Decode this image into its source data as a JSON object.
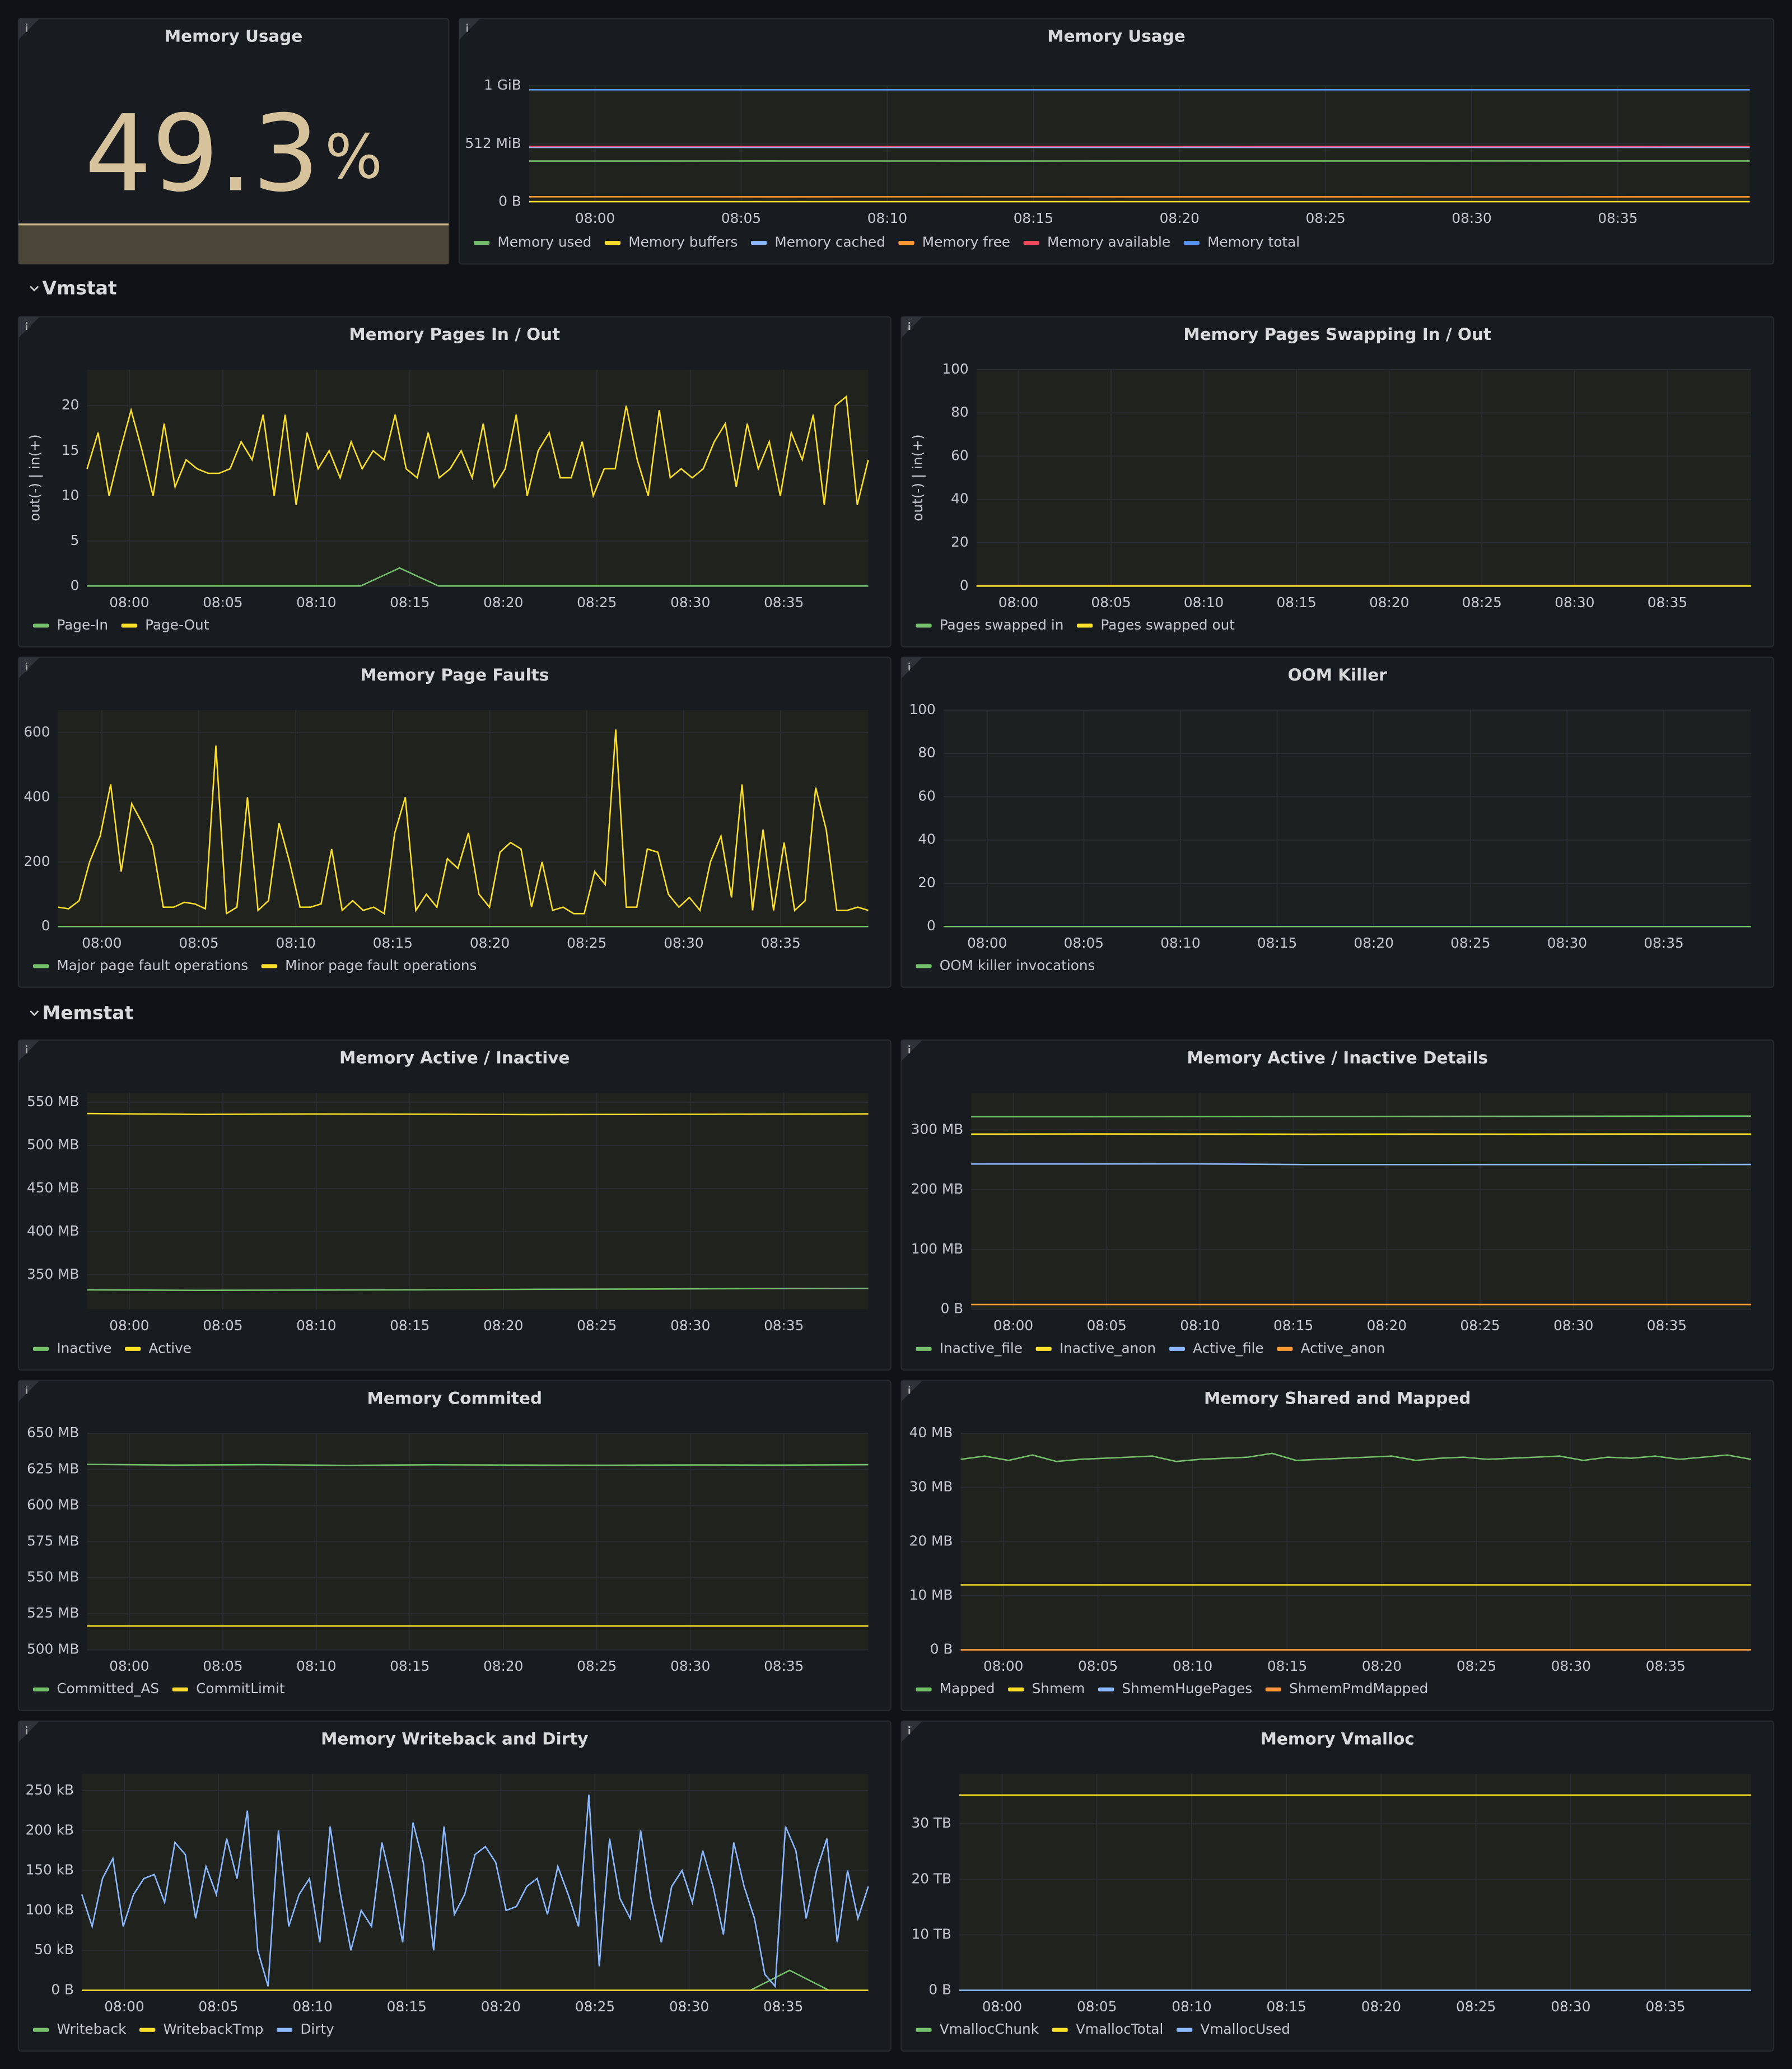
{
  "stat_panel": {
    "title": "Memory Usage",
    "value": 49.3,
    "unit": "%"
  },
  "sections": [
    "Vmstat",
    "Memstat"
  ],
  "panels": [
    {
      "type": "line",
      "title": "Memory Usage",
      "ylim": [
        0,
        1073741824
      ],
      "yticks": [
        {
          "value": 0,
          "label": "0 B"
        },
        {
          "value": 536870912,
          "label": "512 MiB"
        },
        {
          "value": 1073741824,
          "label": "1 GiB"
        }
      ],
      "xticks": [
        "08:00",
        "08:05",
        "08:10",
        "08:15",
        "08:20",
        "08:25",
        "08:30",
        "08:35"
      ],
      "series": [
        {
          "name": "Memory used",
          "color": "#73bf69",
          "values": [
            378000000,
            378500000,
            378200000,
            378800000,
            379000000,
            378600000
          ]
        },
        {
          "name": "Memory buffers",
          "color": "#fade2a",
          "values": [
            2500000,
            2500000,
            2500000,
            2500000,
            2500000,
            2500000
          ]
        },
        {
          "name": "Memory cached",
          "color": "#8ab8ff",
          "values": [
            505000000,
            505000000,
            505000000,
            505000000,
            505000000,
            505000000
          ]
        },
        {
          "name": "Memory free",
          "color": "#ff9830",
          "values": [
            48000000,
            47500000,
            47800000,
            47200000,
            47000000,
            47400000
          ]
        },
        {
          "name": "Memory available",
          "color": "#f2495c",
          "values": [
            512000000,
            511800000,
            512100000,
            511600000,
            511400000,
            511700000
          ]
        },
        {
          "name": "Memory total",
          "color": "#5794f2",
          "values": [
            1037000000,
            1037000000,
            1037000000,
            1037000000,
            1037000000,
            1037000000
          ]
        }
      ]
    },
    {
      "type": "line",
      "title": "Memory Pages In / Out",
      "ylabel": "out(-) | in(+)",
      "ylim": [
        0,
        24
      ],
      "yticks": [
        0,
        5,
        10,
        15,
        20
      ],
      "xticks": [
        "08:00",
        "08:05",
        "08:10",
        "08:15",
        "08:20",
        "08:25",
        "08:30",
        "08:35"
      ],
      "series": [
        {
          "name": "Page-In",
          "color": "#73bf69",
          "values": [
            0,
            0,
            0,
            0,
            0,
            0,
            0,
            0,
            2,
            0,
            0,
            0,
            0,
            0,
            0,
            0,
            0,
            0,
            0,
            0,
            0
          ]
        },
        {
          "name": "Page-Out",
          "color": "#fade2a",
          "values": [
            13,
            17,
            10,
            15,
            19.5,
            15,
            10,
            18,
            11,
            14,
            13,
            12.5,
            12.5,
            13,
            16,
            14,
            19,
            10,
            19,
            9,
            17,
            13,
            15,
            12,
            16,
            13,
            15,
            14,
            19,
            13,
            12,
            17,
            12,
            13,
            15,
            12,
            18,
            11,
            13,
            19,
            10,
            15,
            17,
            12,
            12,
            16,
            10,
            13,
            13,
            20,
            14,
            10,
            19.5,
            12,
            13,
            12,
            13,
            16,
            18,
            11,
            18,
            13,
            16,
            10,
            17,
            14,
            19,
            9,
            20,
            21,
            9,
            14
          ]
        }
      ]
    },
    {
      "type": "line",
      "title": "Memory Pages Swapping In / Out",
      "ylabel": "out(-) | in(+)",
      "ylim": [
        0,
        100
      ],
      "yticks": [
        0,
        20,
        40,
        60,
        80,
        100
      ],
      "xticks": [
        "08:00",
        "08:05",
        "08:10",
        "08:15",
        "08:20",
        "08:25",
        "08:30",
        "08:35"
      ],
      "series": [
        {
          "name": "Pages swapped in",
          "color": "#73bf69",
          "values": [
            0,
            0,
            0,
            0,
            0,
            0,
            0,
            0,
            0,
            0,
            0
          ]
        },
        {
          "name": "Pages swapped out",
          "color": "#fade2a",
          "values": [
            0,
            0,
            0,
            0,
            0,
            0,
            0,
            0,
            0,
            0,
            0
          ]
        }
      ]
    },
    {
      "type": "line",
      "title": "Memory Page Faults",
      "ylim": [
        0,
        670
      ],
      "yticks": [
        0,
        200,
        400,
        600
      ],
      "xticks": [
        "08:00",
        "08:05",
        "08:10",
        "08:15",
        "08:20",
        "08:25",
        "08:30",
        "08:35"
      ],
      "series": [
        {
          "name": "Major page fault operations",
          "color": "#73bf69",
          "values": [
            0,
            0,
            0,
            0,
            0,
            0,
            0,
            0,
            0,
            0,
            0
          ]
        },
        {
          "name": "Minor page fault operations",
          "color": "#fade2a",
          "values": [
            60,
            55,
            80,
            200,
            280,
            440,
            170,
            380,
            320,
            250,
            60,
            60,
            75,
            70,
            55,
            560,
            40,
            60,
            400,
            50,
            80,
            320,
            200,
            60,
            60,
            70,
            240,
            50,
            80,
            50,
            60,
            40,
            290,
            400,
            50,
            100,
            60,
            210,
            180,
            290,
            100,
            60,
            230,
            260,
            240,
            60,
            200,
            50,
            60,
            40,
            40,
            170,
            130,
            610,
            60,
            60,
            240,
            230,
            100,
            60,
            90,
            50,
            200,
            280,
            90,
            440,
            50,
            300,
            50,
            260,
            50,
            80,
            430,
            300,
            50,
            50,
            60,
            50
          ]
        }
      ]
    },
    {
      "type": "line",
      "title": "OOM Killer",
      "ylim": [
        0,
        100
      ],
      "yticks": [
        0,
        20,
        40,
        60,
        80,
        100
      ],
      "xticks": [
        "08:00",
        "08:05",
        "08:10",
        "08:15",
        "08:20",
        "08:25",
        "08:30",
        "08:35"
      ],
      "series": [
        {
          "name": "OOM killer invocations",
          "color": "#73bf69",
          "values": [
            0,
            0,
            0,
            0,
            0,
            0,
            0,
            0,
            0,
            0,
            0
          ]
        }
      ]
    },
    {
      "type": "line",
      "title": "Memory Active / Inactive",
      "ylim": [
        310000000,
        561000000
      ],
      "yticks": [
        {
          "value": 350000000,
          "label": "350 MB"
        },
        {
          "value": 400000000,
          "label": "400 MB"
        },
        {
          "value": 450000000,
          "label": "450 MB"
        },
        {
          "value": 500000000,
          "label": "500 MB"
        },
        {
          "value": 550000000,
          "label": "550 MB"
        }
      ],
      "xticks": [
        "08:00",
        "08:05",
        "08:10",
        "08:15",
        "08:20",
        "08:25",
        "08:30",
        "08:35"
      ],
      "series": [
        {
          "name": "Inactive",
          "color": "#73bf69",
          "values": [
            332500000,
            332000000,
            332300000,
            332600000,
            333200000,
            333500000,
            334000000,
            334200000
          ]
        },
        {
          "name": "Active",
          "color": "#fade2a",
          "values": [
            537000000,
            536000000,
            536500000,
            536200000,
            535800000,
            536000000,
            536300000,
            536600000
          ]
        }
      ]
    },
    {
      "type": "line",
      "title": "Memory Active / Inactive Details",
      "ylim": [
        0,
        362000000
      ],
      "yticks": [
        {
          "value": 0,
          "label": "0 B"
        },
        {
          "value": 100000000,
          "label": "100 MB"
        },
        {
          "value": 200000000,
          "label": "200 MB"
        },
        {
          "value": 300000000,
          "label": "300 MB"
        }
      ],
      "xticks": [
        "08:00",
        "08:05",
        "08:10",
        "08:15",
        "08:20",
        "08:25",
        "08:30",
        "08:35"
      ],
      "series": [
        {
          "name": "Inactive_file",
          "color": "#73bf69",
          "values": [
            322000000,
            322000000,
            322300000,
            322500000,
            322600000,
            322800000,
            323000000,
            323100000
          ]
        },
        {
          "name": "Inactive_anon",
          "color": "#fade2a",
          "values": [
            293000000,
            293200000,
            293000000,
            292800000,
            293000000,
            292900000,
            293100000,
            293000000
          ]
        },
        {
          "name": "Active_file",
          "color": "#8ab8ff",
          "values": [
            243000000,
            243000000,
            243200000,
            242000000,
            242000000,
            242100000,
            242000000,
            242200000
          ]
        },
        {
          "name": "Active_anon",
          "color": "#ff9830",
          "values": [
            8000000,
            8000000,
            8000000,
            8000000,
            8000000,
            8000000,
            8000000,
            8000000
          ]
        }
      ]
    },
    {
      "type": "line",
      "title": "Memory Commited",
      "ylim": [
        500000000,
        650000000
      ],
      "yticks": [
        {
          "value": 500000000,
          "label": "500 MB"
        },
        {
          "value": 525000000,
          "label": "525 MB"
        },
        {
          "value": 550000000,
          "label": "550 MB"
        },
        {
          "value": 575000000,
          "label": "575 MB"
        },
        {
          "value": 600000000,
          "label": "600 MB"
        },
        {
          "value": 625000000,
          "label": "625 MB"
        },
        {
          "value": 650000000,
          "label": "650 MB"
        }
      ],
      "xticks": [
        "08:00",
        "08:05",
        "08:10",
        "08:15",
        "08:20",
        "08:25",
        "08:30",
        "08:35"
      ],
      "series": [
        {
          "name": "Committed_AS",
          "color": "#73bf69",
          "values": [
            628500000,
            628000000,
            628300000,
            627800000,
            628200000,
            628000000,
            627900000,
            628100000,
            628000000,
            628300000
          ]
        },
        {
          "name": "CommitLimit",
          "color": "#fade2a",
          "values": [
            516500000,
            516500000,
            516500000,
            516500000,
            516500000,
            516500000,
            516500000,
            516500000,
            516500000,
            516500000
          ]
        }
      ]
    },
    {
      "type": "line",
      "title": "Memory Shared and Mapped",
      "ylim": [
        0,
        40000000
      ],
      "yticks": [
        {
          "value": 0,
          "label": "0 B"
        },
        {
          "value": 10000000,
          "label": "10 MB"
        },
        {
          "value": 20000000,
          "label": "20 MB"
        },
        {
          "value": 30000000,
          "label": "30 MB"
        },
        {
          "value": 40000000,
          "label": "40 MB"
        }
      ],
      "xticks": [
        "08:00",
        "08:05",
        "08:10",
        "08:15",
        "08:20",
        "08:25",
        "08:30",
        "08:35"
      ],
      "series": [
        {
          "name": "Mapped",
          "color": "#73bf69",
          "values": [
            35200000,
            35800000,
            35000000,
            36000000,
            34800000,
            35200000,
            35400000,
            35600000,
            35800000,
            34800000,
            35200000,
            35400000,
            35600000,
            36300000,
            35000000,
            35200000,
            35400000,
            35600000,
            35800000,
            35000000,
            35400000,
            35600000,
            35200000,
            35400000,
            35600000,
            35800000,
            35000000,
            35600000,
            35400000,
            35800000,
            35200000,
            35600000,
            36000000,
            35200000
          ]
        },
        {
          "name": "Shmem",
          "color": "#fade2a",
          "values": [
            12000000,
            12000000,
            12000000,
            12000000,
            12000000,
            12000000,
            12000000,
            12000000
          ]
        },
        {
          "name": "ShmemHugePages",
          "color": "#8ab8ff",
          "values": [
            0,
            0,
            0,
            0,
            0,
            0,
            0,
            0
          ]
        },
        {
          "name": "ShmemPmdMapped",
          "color": "#ff9830",
          "values": [
            0,
            0,
            0,
            0,
            0,
            0,
            0,
            0
          ]
        }
      ]
    },
    {
      "type": "line",
      "title": "Memory Writeback and Dirty",
      "ylim": [
        0,
        271000
      ],
      "yticks": [
        {
          "value": 0,
          "label": "0 B"
        },
        {
          "value": 50000,
          "label": "50 kB"
        },
        {
          "value": 100000,
          "label": "100 kB"
        },
        {
          "value": 150000,
          "label": "150 kB"
        },
        {
          "value": 200000,
          "label": "200 kB"
        },
        {
          "value": 250000,
          "label": "250 kB"
        }
      ],
      "xticks": [
        "08:00",
        "08:05",
        "08:10",
        "08:15",
        "08:20",
        "08:25",
        "08:30",
        "08:35"
      ],
      "series": [
        {
          "name": "Writeback",
          "color": "#73bf69",
          "values": [
            0,
            0,
            0,
            0,
            0,
            0,
            0,
            0,
            0,
            0,
            0,
            0,
            0,
            0,
            0,
            0,
            0,
            0,
            25000,
            0,
            0
          ]
        },
        {
          "name": "WritebackTmp",
          "color": "#fade2a",
          "values": [
            0,
            0,
            0,
            0,
            0,
            0,
            0,
            0,
            0,
            0,
            0
          ]
        },
        {
          "name": "Dirty",
          "color": "#8ab8ff",
          "values": [
            120000,
            80000,
            140000,
            165000,
            80000,
            120000,
            140000,
            145000,
            110000,
            185000,
            170000,
            90000,
            155000,
            120000,
            190000,
            140000,
            225000,
            50000,
            5000,
            200000,
            80000,
            120000,
            140000,
            60000,
            205000,
            120000,
            50000,
            100000,
            80000,
            185000,
            130000,
            60000,
            210000,
            160000,
            50000,
            205000,
            95000,
            120000,
            170000,
            180000,
            160000,
            100000,
            105000,
            130000,
            140000,
            95000,
            155000,
            120000,
            80000,
            245000,
            30000,
            190000,
            115000,
            90000,
            200000,
            115000,
            60000,
            130000,
            150000,
            110000,
            175000,
            130000,
            70000,
            185000,
            130000,
            90000,
            20000,
            5000,
            205000,
            175000,
            90000,
            150000,
            190000,
            60000,
            150000,
            90000,
            130000
          ]
        }
      ]
    },
    {
      "type": "line",
      "title": "Memory Vmalloc",
      "ylim": [
        0,
        39000000000000
      ],
      "yticks": [
        {
          "value": 0,
          "label": "0 B"
        },
        {
          "value": 10000000000000,
          "label": "10 TB"
        },
        {
          "value": 20000000000000,
          "label": "20 TB"
        },
        {
          "value": 30000000000000,
          "label": "30 TB"
        }
      ],
      "xticks": [
        "08:00",
        "08:05",
        "08:10",
        "08:15",
        "08:20",
        "08:25",
        "08:30",
        "08:35"
      ],
      "series": [
        {
          "name": "VmallocChunk",
          "color": "#73bf69",
          "values": [
            0,
            0,
            0,
            0,
            0,
            0,
            0,
            0
          ]
        },
        {
          "name": "VmallocTotal",
          "color": "#fade2a",
          "values": [
            35184372087808,
            35184372087808,
            35184372087808,
            35184372087808,
            35184372087808,
            35184372087808,
            35184372087808,
            35184372087808
          ]
        },
        {
          "name": "VmallocUsed",
          "color": "#8ab8ff",
          "values": [
            20000000,
            20000000,
            20000000,
            20000000,
            20000000,
            20000000,
            20000000,
            20000000
          ]
        }
      ]
    }
  ]
}
